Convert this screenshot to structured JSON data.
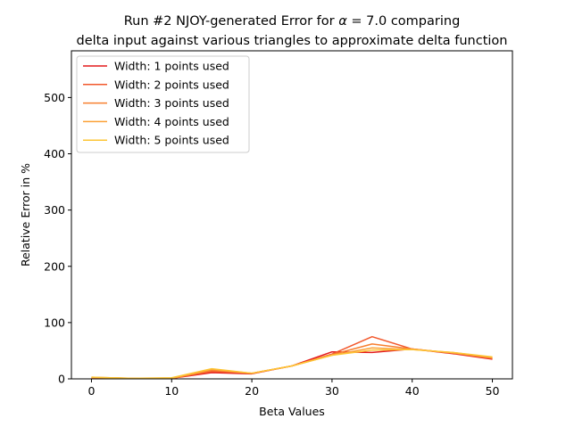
{
  "chart_data": {
    "type": "line",
    "title_line1_pre": "Run #2 NJOY-generated Error for ",
    "title_alpha": "α",
    "title_line1_post": " = 7.0 comparing",
    "title_line2": "delta input against various triangles to approximate delta function",
    "xlabel": "Beta Values",
    "ylabel": "Relative Error in %",
    "xlim": [
      -2.5,
      52.5
    ],
    "ylim": [
      0,
      583
    ],
    "xticks": [
      0,
      10,
      20,
      30,
      40,
      50
    ],
    "yticks": [
      0,
      100,
      200,
      300,
      400,
      500
    ],
    "grid": false,
    "legend_position": "upper-left",
    "x": [
      0,
      5,
      10,
      15,
      20,
      25,
      30,
      35,
      40,
      45,
      50
    ],
    "series": [
      {
        "name": "Width: 1 points used",
        "color": "#e31a1c",
        "values": [
          1,
          1,
          1,
          11,
          9,
          23,
          48,
          47,
          53,
          45,
          35
        ]
      },
      {
        "name": "Width: 2 points used",
        "color": "#f2582c",
        "values": [
          2,
          1,
          1,
          13,
          10,
          23,
          44,
          75,
          53,
          46,
          36
        ]
      },
      {
        "name": "Width: 3 points used",
        "color": "#f77f2f",
        "values": [
          2,
          1,
          1,
          15,
          10,
          23,
          43,
          62,
          53,
          46,
          37
        ]
      },
      {
        "name": "Width: 4 points used",
        "color": "#fba135",
        "values": [
          3,
          1,
          1,
          17,
          10,
          23,
          42,
          55,
          52,
          47,
          38
        ]
      },
      {
        "name": "Width: 5 points used",
        "color": "#fdc535",
        "values": [
          3,
          1,
          2,
          18,
          10,
          23,
          42,
          51,
          52,
          47,
          39
        ]
      }
    ]
  }
}
